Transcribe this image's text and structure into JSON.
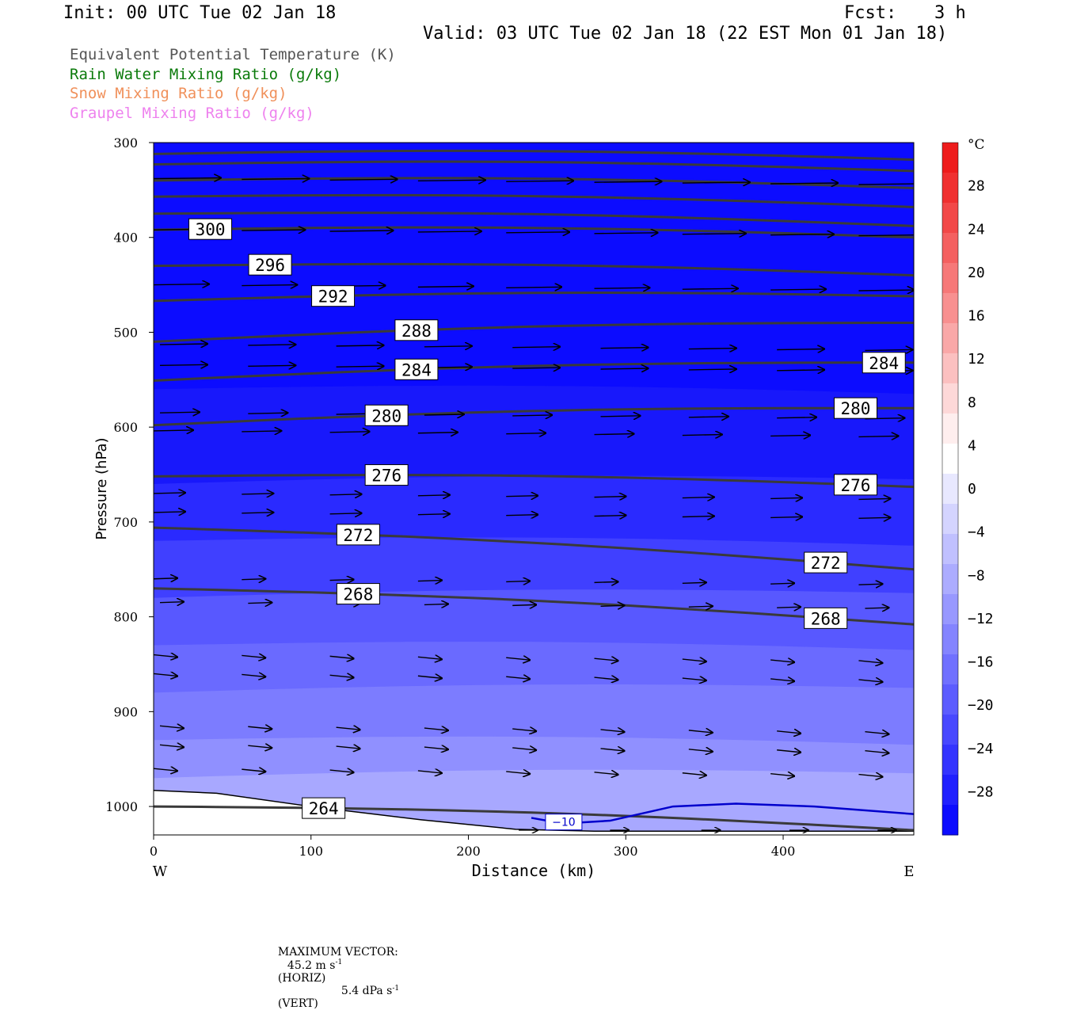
{
  "header": {
    "init": "Init: 00 UTC Tue 02 Jan 18",
    "fcst_label": "Fcst:",
    "fcst_value": "3 h",
    "valid": "Valid: 03 UTC Tue 02 Jan 18 (22 EST Mon 01 Jan 18)"
  },
  "legend": [
    {
      "label": "Equivalent Potential Temperature (K)",
      "color": "#555555"
    },
    {
      "label": "Rain Water Mixing Ratio (g/kg)",
      "color": "#0a7a0a"
    },
    {
      "label": "Snow Mixing Ratio (g/kg)",
      "color": "#f0905a"
    },
    {
      "label": "Graupel Mixing Ratio (g/kg)",
      "color": "#ee82ee"
    }
  ],
  "footer": {
    "max_vector_label": "MAXIMUM VECTOR:",
    "horiz_value": "45.2 m s",
    "horiz_exp": "-1",
    "horiz_tag": "(HORIZ)",
    "vert_value": "5.4 dPa s",
    "vert_exp": "-1",
    "vert_tag": "(VERT)"
  },
  "chart_data": {
    "type": "cross-section",
    "xlabel": "Distance (km)",
    "ylabel": "Pressure (hPa)",
    "x_ticks": [
      0,
      100,
      200,
      300,
      400
    ],
    "xlim": [
      0,
      483
    ],
    "y_ticks": [
      300,
      400,
      500,
      600,
      700,
      800,
      900,
      1000
    ],
    "ylim": [
      300,
      1030
    ],
    "x_end_labels": {
      "left": "W",
      "right": "E"
    },
    "colorbar": {
      "unit": "°C",
      "tick_labels": [
        "28",
        "24",
        "20",
        "16",
        "12",
        "8",
        "4",
        "0",
        "−4",
        "−8",
        "−12",
        "−16",
        "−20",
        "−24",
        "−28"
      ],
      "colors": [
        "#ee1c1c",
        "#f03030",
        "#f24848",
        "#f46060",
        "#f67878",
        "#f89090",
        "#f9a8a8",
        "#fbc0c0",
        "#fdd8d8",
        "#feeeee",
        "#ffffff",
        "#e8e8ff",
        "#d4d4ff",
        "#c0c0ff",
        "#acacff",
        "#9898ff",
        "#8484ff",
        "#7070ff",
        "#5c5cff",
        "#4848ff",
        "#3434ff",
        "#2020ff",
        "#0c0cff"
      ]
    },
    "temperature_shading_c": [
      {
        "p_top": 300,
        "t_min": -28,
        "color": "#0c0cff"
      },
      {
        "p_top": 560,
        "t_min": -28,
        "color": "#1818fb"
      },
      {
        "p_top": 660,
        "t_min": -24,
        "color": "#2a2aff"
      },
      {
        "p_top": 720,
        "t_min": -20,
        "color": "#4040ff"
      },
      {
        "p_top": 780,
        "t_min": -16,
        "color": "#5858ff"
      },
      {
        "p_top": 830,
        "t_min": -12,
        "color": "#6a6aff"
      },
      {
        "p_top": 880,
        "t_min": -8,
        "color": "#7c7cff"
      },
      {
        "p_top": 930,
        "t_min": -4,
        "color": "#9090ff"
      },
      {
        "p_top": 970,
        "t_min": 0,
        "color": "#a8a8ff"
      }
    ],
    "theta_e_contours": [
      {
        "value": "300",
        "p_left": 392,
        "p_right": 400
      },
      {
        "value": "296",
        "p_left": 430,
        "p_right": 440
      },
      {
        "value": "292",
        "p_left": 467,
        "p_right": 462
      },
      {
        "value": "288",
        "p_left": 510,
        "p_right": 490
      },
      {
        "value": "284",
        "p_left": 551,
        "p_right": 532
      },
      {
        "value": "280",
        "p_left": 598,
        "p_right": 580
      },
      {
        "value": "276",
        "p_left": 652,
        "p_right": 663
      },
      {
        "value": "272",
        "p_left": 706,
        "p_right": 750
      },
      {
        "value": "268",
        "p_left": 770,
        "p_right": 808
      },
      {
        "value": "264",
        "p_left": 1000,
        "p_right": 1025
      }
    ],
    "temp_contour_labels": [
      "−10"
    ],
    "wind_vectors": "horizontal westerly arrows, strongest aloft"
  }
}
